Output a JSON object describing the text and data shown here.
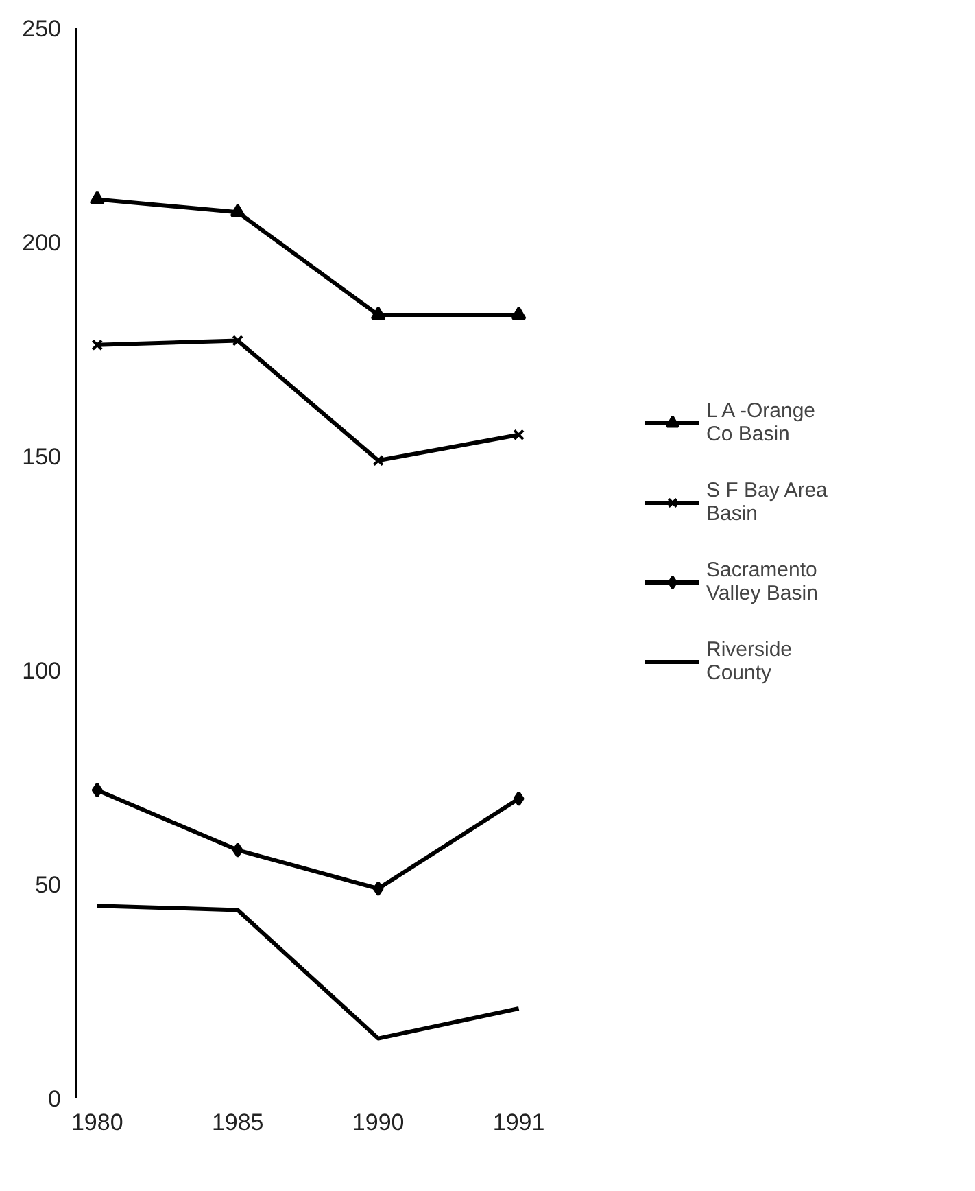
{
  "chart_data": {
    "type": "line",
    "categories": [
      "1980",
      "1985",
      "1990",
      "1991"
    ],
    "ylim": [
      0,
      250
    ],
    "yticks": [
      0,
      50,
      100,
      150,
      200,
      250
    ],
    "grid": false,
    "legend": "right",
    "series": [
      {
        "name": "L A -Orange Co Basin",
        "color": "#000000",
        "marker": "triangle",
        "values": [
          210,
          207,
          183,
          183
        ]
      },
      {
        "name": "S F Bay Area Basin",
        "color": "#000000",
        "marker": "cross",
        "values": [
          176,
          177,
          149,
          155
        ]
      },
      {
        "name": "Sacramento Valley Basin",
        "color": "#000000",
        "marker": "diamond",
        "values": [
          72,
          58,
          49,
          70
        ]
      },
      {
        "name": "Riverside County",
        "color": "#000000",
        "marker": "none",
        "values": [
          45,
          44,
          14,
          21
        ]
      }
    ]
  }
}
